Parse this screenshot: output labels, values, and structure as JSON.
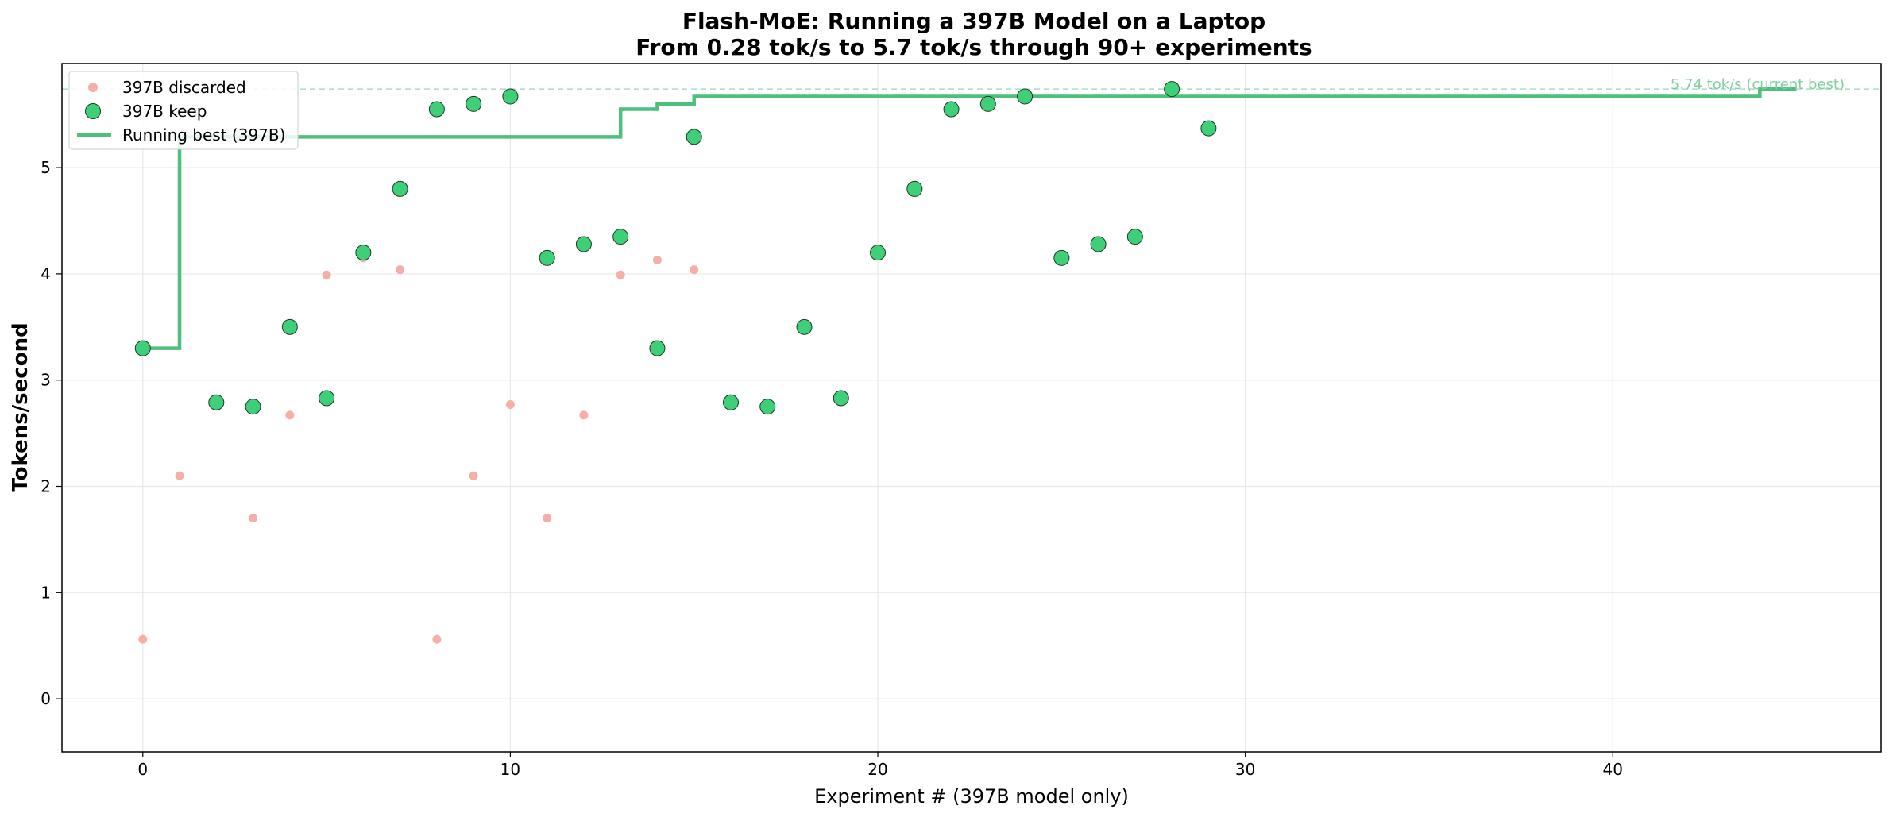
{
  "chart_data": {
    "type": "scatter",
    "title_line1": "Flash-MoE: Running a 397B Model on a Laptop",
    "title_line2": "From 0.28 tok/s to 5.7 tok/s through 90+ experiments",
    "xlabel": "Experiment # (397B model only)",
    "ylabel": "Tokens/second",
    "xlim": [
      -2.2,
      47.3
    ],
    "ylim": [
      -0.5,
      5.98
    ],
    "xticks": [
      0,
      10,
      20,
      30,
      40
    ],
    "yticks": [
      0,
      1,
      2,
      3,
      4,
      5
    ],
    "grid": true,
    "legend_position": "top-left",
    "colors": {
      "discarded": "#f4b0a8",
      "keep": "#3ecf78",
      "keep_edge": "#1a3a25",
      "running_best": "#4dc07c",
      "annotation": "#7fcf9f",
      "best_line": "#a8dcc8"
    },
    "series": [
      {
        "name": "397B discarded",
        "kind": "scatter-small",
        "points": [
          [
            0,
            0.56
          ],
          [
            1,
            2.1
          ],
          [
            3,
            1.7
          ],
          [
            4,
            2.67
          ],
          [
            5,
            3.99
          ],
          [
            6,
            4.15
          ],
          [
            7,
            4.04
          ],
          [
            8,
            0.56
          ],
          [
            9,
            2.1
          ],
          [
            10,
            2.77
          ],
          [
            11,
            1.7
          ],
          [
            12,
            2.67
          ],
          [
            13,
            3.99
          ],
          [
            14,
            4.13
          ],
          [
            15,
            4.04
          ]
        ]
      },
      {
        "name": "397B keep",
        "kind": "scatter-large",
        "points": [
          [
            0,
            3.3
          ],
          [
            2,
            2.79
          ],
          [
            3,
            2.75
          ],
          [
            4,
            3.5
          ],
          [
            5,
            2.83
          ],
          [
            6,
            4.2
          ],
          [
            7,
            4.8
          ],
          [
            8,
            5.55
          ],
          [
            9,
            5.6
          ],
          [
            10,
            5.67
          ],
          [
            11,
            4.15
          ],
          [
            12,
            4.28
          ],
          [
            13,
            4.35
          ],
          [
            14,
            3.3
          ],
          [
            15,
            5.29
          ],
          [
            16,
            2.79
          ],
          [
            17,
            2.75
          ],
          [
            18,
            3.5
          ],
          [
            19,
            2.83
          ],
          [
            20,
            4.2
          ],
          [
            21,
            4.8
          ],
          [
            22,
            5.55
          ],
          [
            23,
            5.6
          ],
          [
            24,
            5.67
          ],
          [
            25,
            4.15
          ],
          [
            26,
            4.28
          ],
          [
            27,
            4.35
          ],
          [
            28,
            5.74
          ],
          [
            29,
            5.37
          ]
        ]
      },
      {
        "name": "Running best (397B)",
        "kind": "step",
        "points": [
          [
            0,
            3.3
          ],
          [
            1,
            3.3
          ],
          [
            1,
            5.29
          ],
          [
            13,
            5.29
          ],
          [
            13,
            5.55
          ],
          [
            14,
            5.55
          ],
          [
            14,
            5.6
          ],
          [
            15,
            5.6
          ],
          [
            15,
            5.67
          ],
          [
            44,
            5.67
          ],
          [
            44,
            5.74
          ],
          [
            45,
            5.74
          ]
        ]
      }
    ],
    "best_line_value": 5.74,
    "best_annotation": "5.74 tok/s (current best)"
  }
}
